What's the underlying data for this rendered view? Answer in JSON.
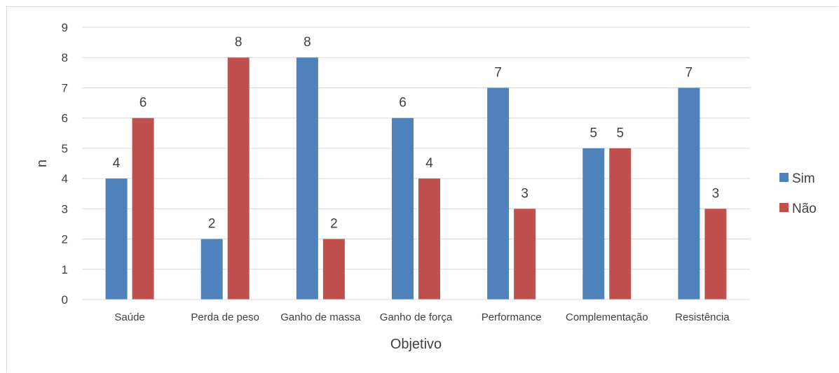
{
  "chart_data": {
    "type": "bar",
    "title": "",
    "xlabel": "Objetivo",
    "ylabel": "n",
    "ylim": [
      0,
      9
    ],
    "yticks": [
      0,
      1,
      2,
      3,
      4,
      5,
      6,
      7,
      8,
      9
    ],
    "grid": true,
    "legend": "right",
    "categories": [
      "Saúde",
      "Perda de peso",
      "Ganho de massa",
      "Ganho de força",
      "Performance",
      "Complementação",
      "Resistência"
    ],
    "series": [
      {
        "name": "Sim",
        "color": "#4f81bd",
        "values": [
          4,
          2,
          8,
          6,
          7,
          5,
          7
        ]
      },
      {
        "name": "Não",
        "color": "#c0504d",
        "values": [
          6,
          8,
          2,
          4,
          3,
          5,
          3
        ]
      }
    ]
  }
}
